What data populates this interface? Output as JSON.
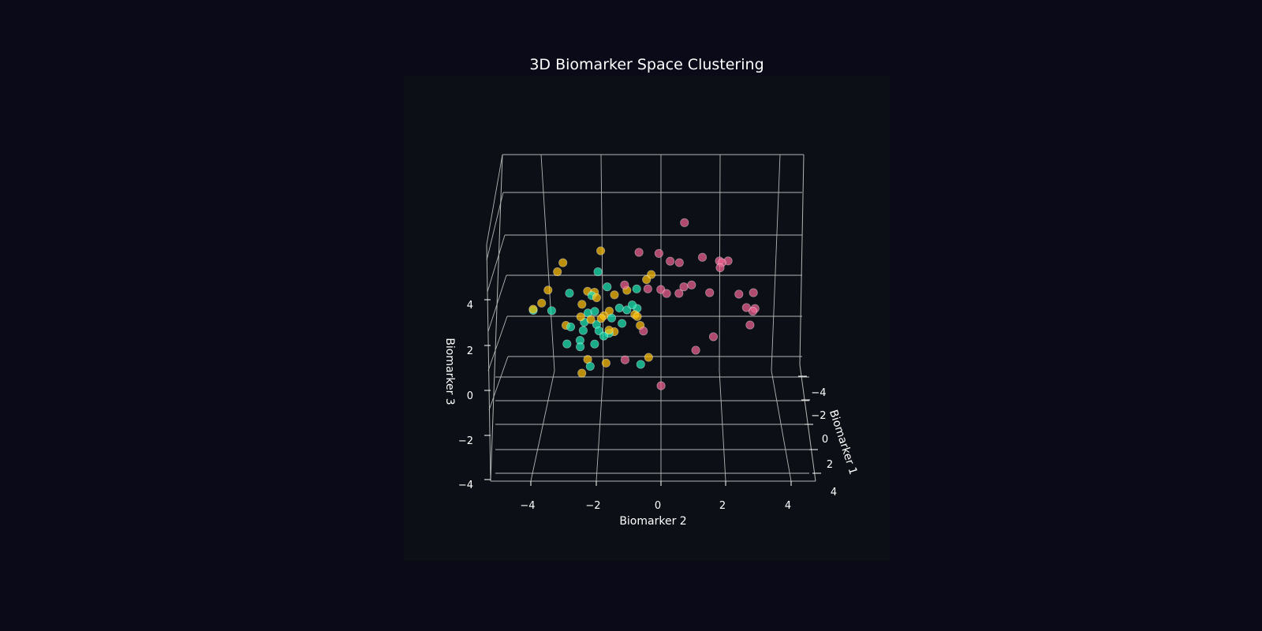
{
  "chart_data": {
    "type": "scatter",
    "title": "3D Biomarker Space Clustering",
    "xlabel": "Biomarker 1",
    "ylabel": "Biomarker 2",
    "zlabel": "Biomarker 3",
    "xlim": [
      -5,
      5
    ],
    "ylim": [
      -5,
      5
    ],
    "zlim": [
      -4,
      8
    ],
    "x_ticks": [
      -4,
      -2,
      0,
      2,
      4
    ],
    "y_ticks": [
      -4,
      -2,
      0,
      2,
      4
    ],
    "z_ticks": [
      -4,
      -2,
      0,
      2,
      4
    ],
    "tick_labels": {
      "x": [
        "−4",
        "−2",
        "0",
        "2",
        "4"
      ],
      "y": [
        "−4",
        "−2",
        "0",
        "2",
        "4"
      ],
      "z": [
        "−4",
        "−2",
        "0",
        "2",
        "4"
      ]
    },
    "grid": true,
    "legend": "none",
    "colors": {
      "figure_background": "#0a0a18",
      "axes_background": "#0c1016",
      "grid": "#b4b4b4",
      "text": "#ffffff"
    },
    "series": [
      {
        "color": "#1de9b6",
        "points": [
          {
            "x": -3.6,
            "y": -5.0,
            "z": 0.2
          },
          {
            "x": -3.0,
            "y": -3.3,
            "z": 1.5
          },
          {
            "x": -1.8,
            "y": -3.3,
            "z": -0.8
          },
          {
            "x": -1.0,
            "y": -2.7,
            "z": -0.2
          },
          {
            "x": -0.8,
            "y": -2.1,
            "z": -0.3
          },
          {
            "x": 1.0,
            "y": -2.2,
            "z": -0.6
          },
          {
            "x": -1.4,
            "y": -2.4,
            "z": 1.1
          },
          {
            "x": -0.9,
            "y": -2.1,
            "z": 1.4
          },
          {
            "x": -1.8,
            "y": -2.0,
            "z": 3.2
          },
          {
            "x": -0.5,
            "y": -2.2,
            "z": 2.4
          },
          {
            "x": 0.1,
            "y": -1.9,
            "z": 0.8
          },
          {
            "x": -0.2,
            "y": -2.0,
            "z": 1.0
          },
          {
            "x": 0.4,
            "y": -1.5,
            "z": 0.8
          },
          {
            "x": 0.2,
            "y": -1.4,
            "z": 1.5
          },
          {
            "x": -0.6,
            "y": -1.1,
            "z": 1.7
          },
          {
            "x": -0.1,
            "y": -1.0,
            "z": 1.1
          },
          {
            "x": -0.6,
            "y": -0.8,
            "z": 1.6
          },
          {
            "x": -0.3,
            "y": -0.4,
            "z": 1.8
          },
          {
            "x": 0.0,
            "y": -0.6,
            "z": 2.1
          },
          {
            "x": -0.9,
            "y": -0.4,
            "z": 2.6
          },
          {
            "x": 1.0,
            "y": -0.3,
            "z": -0.5
          },
          {
            "x": 0.5,
            "y": -1.7,
            "z": 0.7
          },
          {
            "x": -0.5,
            "y": -2.5,
            "z": 1.0
          },
          {
            "x": 0.3,
            "y": -2.5,
            "z": 0.9
          },
          {
            "x": -1.2,
            "y": -1.6,
            "z": 2.6
          },
          {
            "x": -0.5,
            "y": -3.8,
            "z": 1.6
          },
          {
            "x": 0.6,
            "y": -2.6,
            "z": 0.2
          },
          {
            "x": 0.1,
            "y": -3.0,
            "z": 1.0
          }
        ]
      },
      {
        "color": "#ffc107",
        "points": [
          {
            "x": -1.0,
            "y": -4.0,
            "z": 2.5
          },
          {
            "x": -0.5,
            "y": -4.2,
            "z": 2.0
          },
          {
            "x": -1.8,
            "y": -3.7,
            "z": 3.2
          },
          {
            "x": -0.2,
            "y": -4.5,
            "z": 1.8
          },
          {
            "x": -2.1,
            "y": -3.5,
            "z": 3.6
          },
          {
            "x": -1.1,
            "y": -2.4,
            "z": 2.4
          },
          {
            "x": -0.2,
            "y": -2.0,
            "z": 2.4
          },
          {
            "x": 0.4,
            "y": -2.2,
            "z": 1.5
          },
          {
            "x": 0.3,
            "y": -2.6,
            "z": 1.6
          },
          {
            "x": 0.9,
            "y": -2.3,
            "z": -0.3
          },
          {
            "x": 1.3,
            "y": -2.5,
            "z": -0.8
          },
          {
            "x": 0.5,
            "y": -1.8,
            "z": 1.6
          },
          {
            "x": 0.5,
            "y": -1.5,
            "z": 1.0
          },
          {
            "x": 0.2,
            "y": -1.3,
            "z": 0.8
          },
          {
            "x": -0.7,
            "y": -2.1,
            "z": 2.5
          },
          {
            "x": -0.2,
            "y": -1.5,
            "z": 1.7
          },
          {
            "x": -0.6,
            "y": -1.3,
            "z": 2.4
          },
          {
            "x": 0.0,
            "y": -0.5,
            "z": 1.6
          },
          {
            "x": -0.7,
            "y": -0.8,
            "z": 2.6
          },
          {
            "x": 0.4,
            "y": -0.3,
            "z": 1.2
          },
          {
            "x": 0.9,
            "y": 0.0,
            "z": -0.2
          },
          {
            "x": -0.9,
            "y": 0.0,
            "z": 3.1
          },
          {
            "x": -1.1,
            "y": 0.2,
            "z": 3.3
          },
          {
            "x": 0.0,
            "y": -0.4,
            "z": 1.5
          },
          {
            "x": -2.3,
            "y": -1.9,
            "z": 4.2
          },
          {
            "x": 0.4,
            "y": -1.7,
            "z": 1.7
          },
          {
            "x": 1.3,
            "y": -1.6,
            "z": -0.3
          },
          {
            "x": -0.1,
            "y": -3.2,
            "z": 1.0
          },
          {
            "x": -0.6,
            "y": -2.6,
            "z": 1.9
          }
        ]
      },
      {
        "color": "#f06292",
        "points": [
          {
            "x": -1.5,
            "y": 1.6,
            "z": 6.0
          },
          {
            "x": -1.1,
            "y": -0.3,
            "z": 4.5
          },
          {
            "x": -0.9,
            "y": 0.5,
            "z": 4.5
          },
          {
            "x": -0.2,
            "y": 0.9,
            "z": 4.3
          },
          {
            "x": -0.6,
            "y": 1.3,
            "z": 4.1
          },
          {
            "x": -1.2,
            "y": 2.3,
            "z": 4.2
          },
          {
            "x": -1.2,
            "y": 3.0,
            "z": 4.0
          },
          {
            "x": -0.9,
            "y": 3.3,
            "z": 4.1
          },
          {
            "x": -0.6,
            "y": 3.0,
            "z": 4.1
          },
          {
            "x": -0.4,
            "y": 2.9,
            "z": 3.9
          },
          {
            "x": 0.2,
            "y": 1.4,
            "z": 3.1
          },
          {
            "x": 0.2,
            "y": 1.7,
            "z": 3.2
          },
          {
            "x": 0.2,
            "y": 2.4,
            "z": 2.8
          },
          {
            "x": 0.4,
            "y": 3.5,
            "z": 2.8
          },
          {
            "x": 0.6,
            "y": 0.7,
            "z": 2.9
          },
          {
            "x": 0.3,
            "y": 1.2,
            "z": 2.8
          },
          {
            "x": 0.3,
            "y": 0.5,
            "z": 3.0
          },
          {
            "x": 0.2,
            "y": 0.0,
            "z": 3.0
          },
          {
            "x": 0.2,
            "y": -0.9,
            "z": 3.2
          },
          {
            "x": 1.1,
            "y": -0.2,
            "z": 1.2
          },
          {
            "x": 1.3,
            "y": 2.4,
            "z": 1.0
          },
          {
            "x": 1.1,
            "y": 3.8,
            "z": 1.5
          },
          {
            "x": 0.9,
            "y": 3.7,
            "z": 2.3
          },
          {
            "x": 0.6,
            "y": 4.0,
            "z": 2.0
          },
          {
            "x": 0.5,
            "y": 4.1,
            "z": 2.1
          },
          {
            "x": 0.2,
            "y": 4.1,
            "z": 2.8
          },
          {
            "x": 1.7,
            "y": 1.7,
            "z": 0.5
          },
          {
            "x": 2.1,
            "y": -0.9,
            "z": 0.2
          },
          {
            "x": 2.2,
            "y": 0.4,
            "z": -1.0
          }
        ]
      }
    ]
  }
}
